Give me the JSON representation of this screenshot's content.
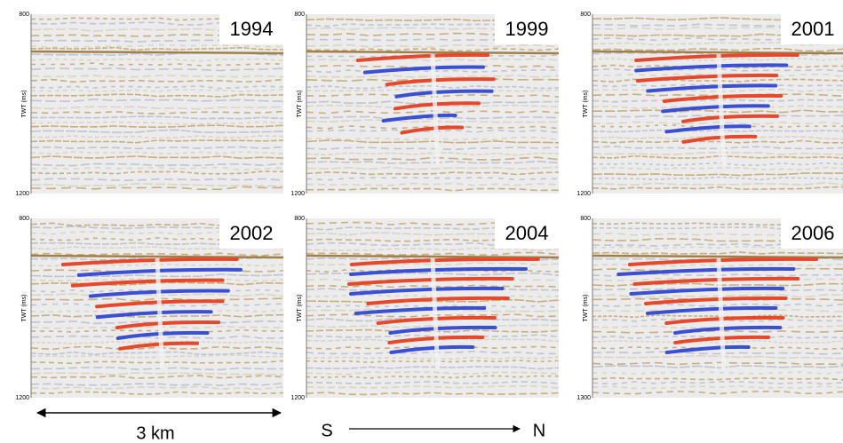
{
  "panels": [
    {
      "year": "1994",
      "ytop": "800",
      "ybottom": "1200",
      "ylabel": "TWT (ms)"
    },
    {
      "year": "1999",
      "ytop": "800",
      "ybottom": "1200",
      "ylabel": "TWT (ms)"
    },
    {
      "year": "2001",
      "ytop": "800",
      "ybottom": "1200",
      "ylabel": "TWT (ms)"
    },
    {
      "year": "2002",
      "ytop": "800",
      "ybottom": "1200",
      "ylabel": "TWT (ms)"
    },
    {
      "year": "2004",
      "ytop": "800",
      "ybottom": "1200",
      "ylabel": "TWT (ms)"
    },
    {
      "year": "2006",
      "ytop": "800",
      "ybottom": "1300",
      "ylabel": "TWT (ms)"
    }
  ],
  "scale": "3 km",
  "direction": {
    "from": "S",
    "to": "N"
  }
}
